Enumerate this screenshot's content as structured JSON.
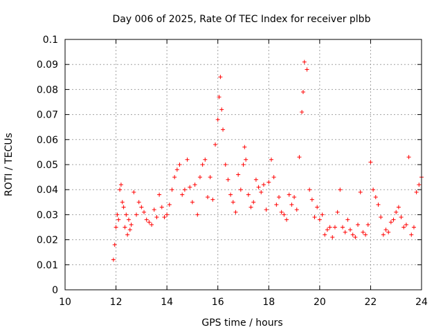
{
  "chart_data": {
    "type": "scatter",
    "title": "Day 006 of 2025, Rate Of TEC Index for receiver plbb",
    "xlabel": "GPS time / hours",
    "ylabel": "ROTI / TECUs",
    "xlim": [
      10,
      24
    ],
    "ylim": [
      0,
      0.1
    ],
    "x_ticks": [
      "10",
      "12",
      "14",
      "16",
      "18",
      "20",
      "22",
      "24"
    ],
    "y_ticks": [
      "0",
      "0.01",
      "0.02",
      "0.03",
      "0.04",
      "0.05",
      "0.06",
      "0.07",
      "0.08",
      "0.09",
      "0.1"
    ],
    "grid": true,
    "marker": "+",
    "color": "#ff0000",
    "series": [
      {
        "x": [
          11.9,
          11.95,
          12.0,
          12.05,
          12.1,
          12.15,
          12.2,
          12.25,
          12.3,
          12.35,
          12.4,
          12.45,
          12.5,
          12.55,
          12.6,
          12.7,
          12.8,
          12.9,
          13.0,
          13.1,
          13.2,
          13.3,
          13.4,
          13.5,
          13.6,
          13.7,
          13.8,
          13.9,
          14.0,
          14.1,
          14.2,
          14.3,
          14.4,
          14.5,
          14.6,
          14.7,
          14.8,
          14.9,
          15.0,
          15.1,
          15.2,
          15.3,
          15.4,
          15.5,
          15.6,
          15.7,
          15.8,
          15.9,
          16.0,
          16.05,
          16.1,
          16.15,
          16.2,
          16.3,
          16.4,
          16.5,
          16.6,
          16.7,
          16.8,
          16.9,
          17.0,
          17.05,
          17.1,
          17.2,
          17.3,
          17.4,
          17.5,
          17.6,
          17.7,
          17.8,
          17.9,
          18.0,
          18.1,
          18.2,
          18.3,
          18.4,
          18.5,
          18.6,
          18.7,
          18.8,
          18.9,
          19.0,
          19.1,
          19.2,
          19.3,
          19.35,
          19.4,
          19.5,
          19.6,
          19.7,
          19.8,
          19.9,
          20.0,
          20.1,
          20.2,
          20.3,
          20.4,
          20.5,
          20.6,
          20.7,
          20.8,
          20.9,
          21.0,
          21.1,
          21.2,
          21.3,
          21.4,
          21.5,
          21.6,
          21.7,
          21.8,
          21.9,
          22.0,
          22.1,
          22.2,
          22.3,
          22.4,
          22.5,
          22.6,
          22.7,
          22.8,
          22.9,
          23.0,
          23.1,
          23.2,
          23.3,
          23.4,
          23.5,
          23.6,
          23.7,
          23.8,
          23.9,
          24.0
        ],
        "y": [
          0.012,
          0.018,
          0.025,
          0.03,
          0.028,
          0.04,
          0.042,
          0.035,
          0.033,
          0.025,
          0.03,
          0.022,
          0.028,
          0.024,
          0.026,
          0.039,
          0.03,
          0.035,
          0.033,
          0.031,
          0.028,
          0.027,
          0.026,
          0.032,
          0.029,
          0.038,
          0.033,
          0.029,
          0.03,
          0.034,
          0.04,
          0.045,
          0.048,
          0.05,
          0.038,
          0.04,
          0.052,
          0.041,
          0.035,
          0.042,
          0.03,
          0.045,
          0.05,
          0.052,
          0.037,
          0.045,
          0.036,
          0.058,
          0.068,
          0.077,
          0.085,
          0.072,
          0.064,
          0.05,
          0.044,
          0.038,
          0.035,
          0.031,
          0.046,
          0.04,
          0.05,
          0.057,
          0.052,
          0.038,
          0.033,
          0.035,
          0.044,
          0.041,
          0.039,
          0.042,
          0.032,
          0.043,
          0.052,
          0.045,
          0.034,
          0.037,
          0.031,
          0.03,
          0.028,
          0.038,
          0.034,
          0.037,
          0.032,
          0.053,
          0.071,
          0.079,
          0.091,
          0.088,
          0.04,
          0.036,
          0.029,
          0.033,
          0.028,
          0.03,
          0.022,
          0.024,
          0.025,
          0.021,
          0.025,
          0.031,
          0.04,
          0.025,
          0.023,
          0.028,
          0.024,
          0.022,
          0.021,
          0.026,
          0.039,
          0.023,
          0.022,
          0.026,
          0.051,
          0.04,
          0.037,
          0.034,
          0.029,
          0.022,
          0.024,
          0.023,
          0.027,
          0.028,
          0.031,
          0.033,
          0.029,
          0.025,
          0.026,
          0.053,
          0.022,
          0.025,
          0.039,
          0.042,
          0.045
        ]
      }
    ]
  }
}
